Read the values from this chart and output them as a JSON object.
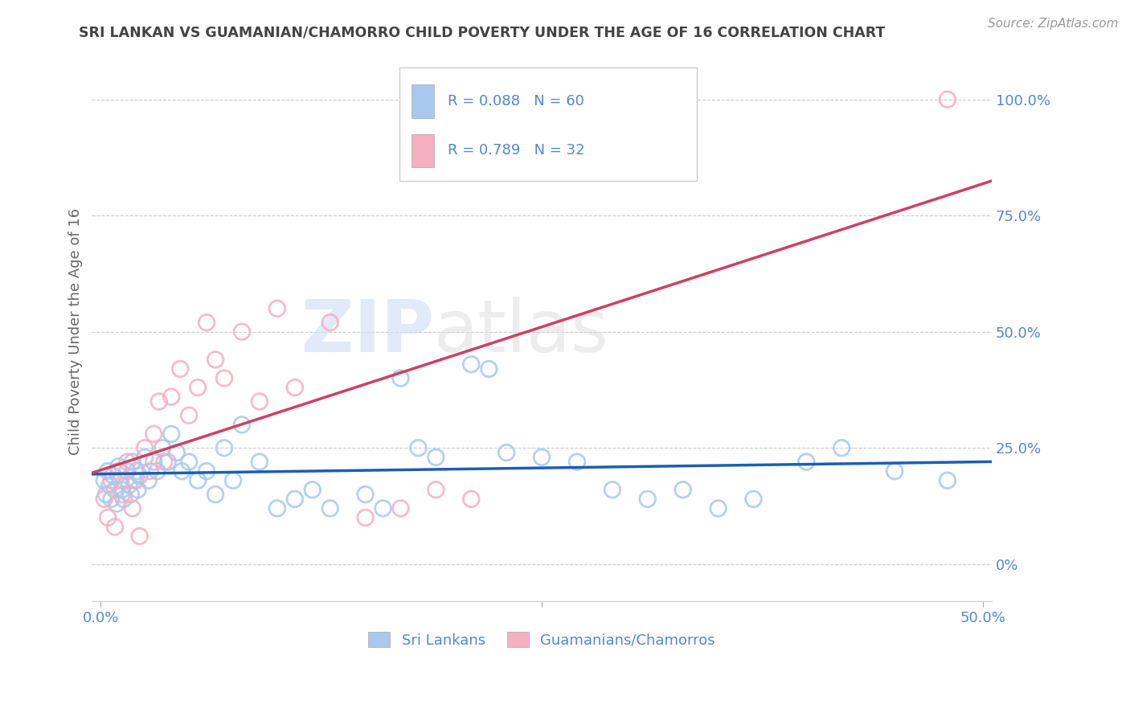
{
  "title": "SRI LANKAN VS GUAMANIAN/CHAMORRO CHILD POVERTY UNDER THE AGE OF 16 CORRELATION CHART",
  "source": "Source: ZipAtlas.com",
  "ylabel": "Child Poverty Under the Age of 16",
  "r1": 0.088,
  "n1": 60,
  "r2": 0.789,
  "n2": 32,
  "blue_scatter_color": "#a8c8f0",
  "pink_scatter_color": "#f5b0c0",
  "blue_line_color": "#1a5fb4",
  "pink_line_color": "#d04060",
  "axis_label_color": "#5588cc",
  "title_color": "#444444",
  "source_color": "#999999",
  "background_color": "#ffffff",
  "grid_color": "#cccccc",
  "legend1_label": "Sri Lankans",
  "legend2_label": "Guamanians/Chamorros",
  "xmin": -0.005,
  "xmax": 0.505,
  "ymin": -0.08,
  "ymax": 1.08,
  "x_ticks": [
    0.0,
    0.25,
    0.5
  ],
  "y_ticks_right": [
    0.0,
    0.25,
    0.5,
    0.75,
    1.0
  ],
  "y_tick_labels_right": [
    "0%",
    "25.0%",
    "50.0%",
    "75.0%",
    "100.0%"
  ],
  "sri_lankan_x": [
    0.002,
    0.003,
    0.004,
    0.005,
    0.006,
    0.007,
    0.008,
    0.009,
    0.01,
    0.011,
    0.012,
    0.013,
    0.015,
    0.016,
    0.017,
    0.018,
    0.019,
    0.02,
    0.021,
    0.022,
    0.025,
    0.027,
    0.03,
    0.032,
    0.035,
    0.038,
    0.04,
    0.043,
    0.046,
    0.05,
    0.055,
    0.06,
    0.065,
    0.07,
    0.075,
    0.08,
    0.09,
    0.1,
    0.11,
    0.12,
    0.13,
    0.15,
    0.16,
    0.17,
    0.18,
    0.19,
    0.21,
    0.22,
    0.23,
    0.25,
    0.27,
    0.29,
    0.31,
    0.33,
    0.35,
    0.37,
    0.4,
    0.42,
    0.45,
    0.48
  ],
  "sri_lankan_y": [
    0.18,
    0.15,
    0.2,
    0.17,
    0.14,
    0.19,
    0.16,
    0.13,
    0.21,
    0.18,
    0.16,
    0.14,
    0.2,
    0.17,
    0.15,
    0.22,
    0.18,
    0.2,
    0.16,
    0.19,
    0.23,
    0.18,
    0.22,
    0.2,
    0.25,
    0.22,
    0.28,
    0.24,
    0.2,
    0.22,
    0.18,
    0.2,
    0.15,
    0.25,
    0.18,
    0.3,
    0.22,
    0.12,
    0.14,
    0.16,
    0.12,
    0.15,
    0.12,
    0.4,
    0.25,
    0.23,
    0.43,
    0.42,
    0.24,
    0.23,
    0.22,
    0.16,
    0.14,
    0.16,
    0.12,
    0.14,
    0.22,
    0.25,
    0.2,
    0.18
  ],
  "guamanian_x": [
    0.002,
    0.004,
    0.006,
    0.008,
    0.01,
    0.012,
    0.015,
    0.018,
    0.02,
    0.022,
    0.025,
    0.028,
    0.03,
    0.033,
    0.036,
    0.04,
    0.045,
    0.05,
    0.055,
    0.06,
    0.065,
    0.07,
    0.08,
    0.09,
    0.1,
    0.11,
    0.13,
    0.15,
    0.17,
    0.19,
    0.21,
    0.48
  ],
  "guamanian_y": [
    0.14,
    0.1,
    0.18,
    0.08,
    0.2,
    0.15,
    0.22,
    0.12,
    0.18,
    0.06,
    0.25,
    0.2,
    0.28,
    0.35,
    0.22,
    0.36,
    0.42,
    0.32,
    0.38,
    0.52,
    0.44,
    0.4,
    0.5,
    0.35,
    0.55,
    0.38,
    0.52,
    0.1,
    0.12,
    0.16,
    0.14,
    1.0
  ]
}
